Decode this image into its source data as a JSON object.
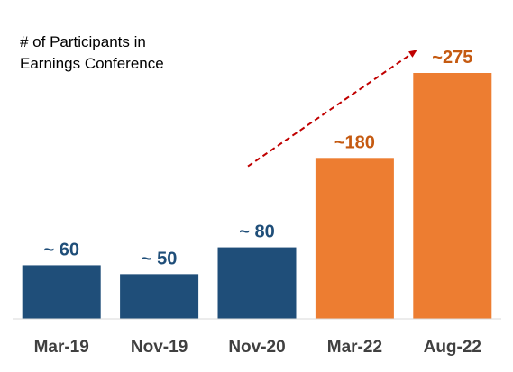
{
  "chart_data": {
    "type": "bar",
    "title_lines": [
      "# of Participants in",
      "Earnings Conference"
    ],
    "categories": [
      "Mar-19",
      "Nov-19",
      "Nov-20",
      "Mar-22",
      "Aug-22"
    ],
    "values": [
      60,
      50,
      80,
      180,
      275
    ],
    "data_labels": [
      "~ 60",
      "~ 50",
      "~ 80",
      "~180",
      "~275"
    ],
    "bar_colors": [
      "#1F4E79",
      "#1F4E79",
      "#1F4E79",
      "#ED7D31",
      "#ED7D31"
    ],
    "label_colors": [
      "#1F4E79",
      "#1F4E79",
      "#1F4E79",
      "#C55A11",
      "#C55A11"
    ],
    "trend_arrow": {
      "color": "#C00000",
      "style": "dashed",
      "from_category": "Nov-20",
      "to_category": "Aug-22"
    },
    "ylim": [
      0,
      275
    ],
    "grid": false,
    "legend": "none"
  }
}
